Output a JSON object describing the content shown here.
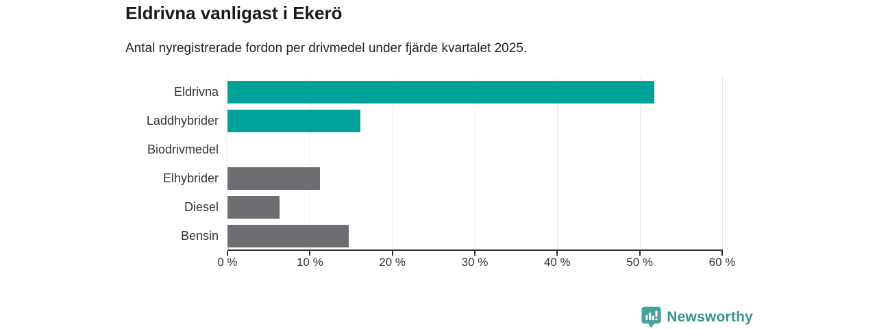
{
  "header": {
    "title": "Eldrivna vanligast i Ekerö",
    "subtitle": "Antal nyregistrerade fordon per drivmedel under fjärde kvartalet 2025."
  },
  "chart_data": {
    "type": "bar",
    "orientation": "horizontal",
    "title": "Eldrivna vanligast i Ekerö",
    "subtitle": "Antal nyregistrerade fordon per drivmedel under fjärde kvartalet 2025.",
    "categories": [
      "Eldrivna",
      "Laddhybrider",
      "Biodrivmedel",
      "Elhybrider",
      "Diesel",
      "Bensin"
    ],
    "values": [
      51.8,
      16.1,
      0,
      11.2,
      6.3,
      14.7
    ],
    "unit": "%",
    "bar_colors": [
      "#00a29a",
      "#00a29a",
      "#00a29a",
      "#6e6e72",
      "#6e6e72",
      "#6e6e72"
    ],
    "xlim": [
      0,
      60
    ],
    "x_ticks": [
      0,
      10,
      20,
      30,
      40,
      50,
      60
    ],
    "x_tick_labels": [
      "0 %",
      "10 %",
      "20 %",
      "30 %",
      "40 %",
      "50 %",
      "60 %"
    ],
    "xlabel": "",
    "ylabel": "",
    "grid": "vertical",
    "legend": "none",
    "colors": {
      "accent_teal": "#00a29a",
      "neutral_gray": "#6e6e72",
      "gridline": "#e7e7e7",
      "axis": "#2e2e2e",
      "text": "#333333"
    }
  },
  "footer": {
    "logo": {
      "text": "Newsworthy",
      "text_color": "#3a928d",
      "icon_color": "#45a19b",
      "icon": "bar-chart-bubble-icon"
    }
  }
}
